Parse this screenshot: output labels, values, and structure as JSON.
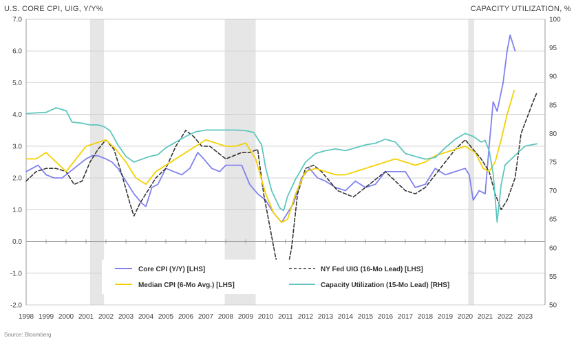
{
  "chart_data": {
    "type": "line",
    "left_axis_title": "U.S. CORE CPI, UIG, Y/Y%",
    "right_axis_title": "CAPACITY UTILIZATION, %",
    "source": "Source: Bloomberg",
    "xlim": [
      1998,
      2024
    ],
    "x_ticks": [
      1998,
      1999,
      2000,
      2001,
      2002,
      2003,
      2004,
      2005,
      2006,
      2007,
      2008,
      2009,
      2010,
      2011,
      2012,
      2013,
      2014,
      2015,
      2016,
      2017,
      2018,
      2019,
      2020,
      2021,
      2022,
      2023
    ],
    "ylim_left": [
      -2.0,
      7.0
    ],
    "y_ticks_left": [
      "-2.0",
      "-1.0",
      "0.0",
      "1.0",
      "2.0",
      "3.0",
      "4.0",
      "5.0",
      "6.0",
      "7.0"
    ],
    "ylim_right": [
      50,
      100
    ],
    "y_ticks_right": [
      "50",
      "55",
      "60",
      "65",
      "70",
      "75",
      "80",
      "85",
      "90",
      "95",
      "100"
    ],
    "grid": true,
    "legend_position": "bottom-center",
    "recessions": [
      [
        2001.2,
        2001.9
      ],
      [
        2007.95,
        2009.5
      ],
      [
        2020.15,
        2020.45
      ]
    ],
    "series": [
      {
        "name": "Core CPI (Y/Y) [LHS]",
        "axis": "left",
        "color": "#8080f0",
        "dash": "none",
        "points": [
          [
            1998.0,
            2.2
          ],
          [
            1998.3,
            2.3
          ],
          [
            1998.6,
            2.4
          ],
          [
            1999.0,
            2.1
          ],
          [
            1999.4,
            2.0
          ],
          [
            1999.8,
            2.0
          ],
          [
            2000.2,
            2.2
          ],
          [
            2000.6,
            2.4
          ],
          [
            2001.0,
            2.6
          ],
          [
            2001.3,
            2.7
          ],
          [
            2001.6,
            2.7
          ],
          [
            2002.0,
            2.6
          ],
          [
            2002.3,
            2.5
          ],
          [
            2002.6,
            2.3
          ],
          [
            2003.0,
            1.9
          ],
          [
            2003.4,
            1.5
          ],
          [
            2003.8,
            1.2
          ],
          [
            2004.0,
            1.1
          ],
          [
            2004.3,
            1.7
          ],
          [
            2004.6,
            1.8
          ],
          [
            2005.0,
            2.3
          ],
          [
            2005.4,
            2.2
          ],
          [
            2005.8,
            2.1
          ],
          [
            2006.2,
            2.3
          ],
          [
            2006.6,
            2.8
          ],
          [
            2006.9,
            2.6
          ],
          [
            2007.3,
            2.3
          ],
          [
            2007.7,
            2.2
          ],
          [
            2008.0,
            2.4
          ],
          [
            2008.4,
            2.4
          ],
          [
            2008.8,
            2.4
          ],
          [
            2009.2,
            1.8
          ],
          [
            2009.6,
            1.5
          ],
          [
            2010.0,
            1.3
          ],
          [
            2010.4,
            0.9
          ],
          [
            2010.8,
            0.6
          ],
          [
            2011.0,
            0.8
          ],
          [
            2011.4,
            1.2
          ],
          [
            2011.8,
            2.0
          ],
          [
            2012.2,
            2.3
          ],
          [
            2012.6,
            2.0
          ],
          [
            2013.0,
            1.9
          ],
          [
            2013.5,
            1.7
          ],
          [
            2014.0,
            1.6
          ],
          [
            2014.5,
            1.9
          ],
          [
            2015.0,
            1.7
          ],
          [
            2015.5,
            1.8
          ],
          [
            2016.0,
            2.2
          ],
          [
            2016.5,
            2.2
          ],
          [
            2017.0,
            2.2
          ],
          [
            2017.5,
            1.7
          ],
          [
            2018.0,
            1.8
          ],
          [
            2018.5,
            2.3
          ],
          [
            2019.0,
            2.1
          ],
          [
            2019.5,
            2.2
          ],
          [
            2020.0,
            2.3
          ],
          [
            2020.2,
            2.1
          ],
          [
            2020.4,
            1.3
          ],
          [
            2020.7,
            1.6
          ],
          [
            2021.0,
            1.5
          ],
          [
            2021.2,
            3.0
          ],
          [
            2021.4,
            4.4
          ],
          [
            2021.6,
            4.1
          ],
          [
            2021.9,
            5.0
          ],
          [
            2022.1,
            6.0
          ],
          [
            2022.25,
            6.5
          ],
          [
            2022.5,
            6.0
          ]
        ]
      },
      {
        "name": "NY Fed UIG (16-Mo Lead) [LHS]",
        "axis": "left",
        "color": "#333333",
        "dash": "dashed",
        "points": [
          [
            1998.0,
            1.9
          ],
          [
            1998.5,
            2.2
          ],
          [
            1999.0,
            2.3
          ],
          [
            1999.5,
            2.3
          ],
          [
            2000.0,
            2.2
          ],
          [
            2000.4,
            1.8
          ],
          [
            2000.8,
            1.9
          ],
          [
            2001.2,
            2.5
          ],
          [
            2001.6,
            2.9
          ],
          [
            2002.0,
            3.2
          ],
          [
            2002.4,
            2.9
          ],
          [
            2002.8,
            2.1
          ],
          [
            2003.2,
            1.2
          ],
          [
            2003.4,
            0.8
          ],
          [
            2003.7,
            1.2
          ],
          [
            2004.0,
            1.5
          ],
          [
            2004.5,
            2.0
          ],
          [
            2005.0,
            2.3
          ],
          [
            2005.5,
            3.0
          ],
          [
            2006.0,
            3.5
          ],
          [
            2006.4,
            3.3
          ],
          [
            2006.8,
            3.0
          ],
          [
            2007.2,
            3.0
          ],
          [
            2007.6,
            2.8
          ],
          [
            2008.0,
            2.6
          ],
          [
            2008.4,
            2.7
          ],
          [
            2008.8,
            2.8
          ],
          [
            2009.2,
            2.8
          ],
          [
            2009.6,
            2.9
          ],
          [
            2009.9,
            1.5
          ],
          [
            2010.2,
            0.5
          ],
          [
            2010.5,
            -0.5
          ],
          [
            2010.8,
            -1.1
          ],
          [
            2011.0,
            -1.2
          ],
          [
            2011.3,
            -0.2
          ],
          [
            2011.6,
            1.5
          ],
          [
            2012.0,
            2.3
          ],
          [
            2012.4,
            2.4
          ],
          [
            2012.8,
            2.2
          ],
          [
            2013.2,
            1.9
          ],
          [
            2013.6,
            1.6
          ],
          [
            2014.0,
            1.5
          ],
          [
            2014.4,
            1.4
          ],
          [
            2014.8,
            1.6
          ],
          [
            2015.2,
            1.8
          ],
          [
            2015.6,
            2.0
          ],
          [
            2016.0,
            2.2
          ],
          [
            2016.5,
            1.9
          ],
          [
            2017.0,
            1.6
          ],
          [
            2017.5,
            1.5
          ],
          [
            2018.0,
            1.7
          ],
          [
            2018.5,
            2.1
          ],
          [
            2019.0,
            2.5
          ],
          [
            2019.5,
            2.9
          ],
          [
            2020.0,
            3.2
          ],
          [
            2020.4,
            2.9
          ],
          [
            2020.8,
            2.6
          ],
          [
            2021.2,
            2.2
          ],
          [
            2021.5,
            1.5
          ],
          [
            2021.8,
            1.0
          ],
          [
            2022.1,
            1.3
          ],
          [
            2022.5,
            2.0
          ],
          [
            2022.8,
            3.4
          ],
          [
            2023.1,
            3.9
          ],
          [
            2023.4,
            4.4
          ],
          [
            2023.6,
            4.7
          ]
        ]
      },
      {
        "name": "Median CPI (6-Mo Avg.) [LHS]",
        "axis": "left",
        "color": "#f5d000",
        "dash": "none",
        "points": [
          [
            1998.0,
            2.6
          ],
          [
            1998.5,
            2.6
          ],
          [
            1999.0,
            2.8
          ],
          [
            1999.5,
            2.5
          ],
          [
            2000.0,
            2.2
          ],
          [
            2000.5,
            2.6
          ],
          [
            2001.0,
            3.0
          ],
          [
            2001.5,
            3.1
          ],
          [
            2002.0,
            3.2
          ],
          [
            2002.5,
            2.9
          ],
          [
            2003.0,
            2.5
          ],
          [
            2003.5,
            2.0
          ],
          [
            2004.0,
            1.8
          ],
          [
            2004.5,
            2.2
          ],
          [
            2005.0,
            2.4
          ],
          [
            2005.5,
            2.6
          ],
          [
            2006.0,
            2.8
          ],
          [
            2006.5,
            3.0
          ],
          [
            2007.0,
            3.2
          ],
          [
            2007.5,
            3.1
          ],
          [
            2008.0,
            3.0
          ],
          [
            2008.5,
            3.0
          ],
          [
            2009.0,
            3.1
          ],
          [
            2009.5,
            2.6
          ],
          [
            2010.0,
            1.5
          ],
          [
            2010.4,
            0.9
          ],
          [
            2010.8,
            0.6
          ],
          [
            2011.1,
            0.7
          ],
          [
            2011.5,
            1.5
          ],
          [
            2012.0,
            2.2
          ],
          [
            2012.5,
            2.3
          ],
          [
            2013.0,
            2.2
          ],
          [
            2013.5,
            2.1
          ],
          [
            2014.0,
            2.1
          ],
          [
            2014.5,
            2.2
          ],
          [
            2015.0,
            2.3
          ],
          [
            2015.5,
            2.4
          ],
          [
            2016.0,
            2.5
          ],
          [
            2016.5,
            2.6
          ],
          [
            2017.0,
            2.5
          ],
          [
            2017.5,
            2.4
          ],
          [
            2018.0,
            2.5
          ],
          [
            2018.5,
            2.7
          ],
          [
            2019.0,
            2.8
          ],
          [
            2019.5,
            2.9
          ],
          [
            2020.0,
            3.0
          ],
          [
            2020.5,
            2.8
          ],
          [
            2020.9,
            2.3
          ],
          [
            2021.2,
            2.2
          ],
          [
            2021.5,
            2.5
          ],
          [
            2021.8,
            3.2
          ],
          [
            2022.1,
            4.0
          ],
          [
            2022.45,
            4.75
          ]
        ]
      },
      {
        "name": "Capacity Utilization (15-Mo Lead) [RHS]",
        "axis": "right",
        "color": "#5ec6bf",
        "dash": "none",
        "points": [
          [
            1998.0,
            83.5
          ],
          [
            1998.5,
            83.6
          ],
          [
            1999.0,
            83.7
          ],
          [
            1999.5,
            84.5
          ],
          [
            2000.0,
            84.0
          ],
          [
            2000.3,
            82.0
          ],
          [
            2000.8,
            81.8
          ],
          [
            2001.2,
            81.5
          ],
          [
            2001.6,
            81.5
          ],
          [
            2001.9,
            81.2
          ],
          [
            2002.2,
            80.5
          ],
          [
            2002.6,
            78.0
          ],
          [
            2003.0,
            76.0
          ],
          [
            2003.4,
            75.0
          ],
          [
            2003.8,
            75.5
          ],
          [
            2004.2,
            76.0
          ],
          [
            2004.6,
            76.3
          ],
          [
            2005.0,
            77.5
          ],
          [
            2005.5,
            78.5
          ],
          [
            2006.0,
            79.5
          ],
          [
            2006.5,
            80.3
          ],
          [
            2007.0,
            80.6
          ],
          [
            2007.5,
            80.6
          ],
          [
            2008.0,
            80.6
          ],
          [
            2008.5,
            80.6
          ],
          [
            2009.0,
            80.5
          ],
          [
            2009.4,
            80.2
          ],
          [
            2009.8,
            78.0
          ],
          [
            2010.0,
            74.0
          ],
          [
            2010.3,
            70.0
          ],
          [
            2010.7,
            67.0
          ],
          [
            2010.9,
            66.5
          ],
          [
            2011.1,
            69.0
          ],
          [
            2011.5,
            72.0
          ],
          [
            2012.0,
            75.0
          ],
          [
            2012.5,
            76.5
          ],
          [
            2013.0,
            77.0
          ],
          [
            2013.5,
            77.3
          ],
          [
            2014.0,
            77.0
          ],
          [
            2014.5,
            77.5
          ],
          [
            2015.0,
            78.0
          ],
          [
            2015.5,
            78.3
          ],
          [
            2016.0,
            79.0
          ],
          [
            2016.5,
            78.5
          ],
          [
            2017.0,
            76.5
          ],
          [
            2017.5,
            76.0
          ],
          [
            2018.0,
            75.5
          ],
          [
            2018.5,
            75.8
          ],
          [
            2019.0,
            77.5
          ],
          [
            2019.5,
            79.0
          ],
          [
            2020.0,
            80.0
          ],
          [
            2020.4,
            79.5
          ],
          [
            2020.8,
            78.5
          ],
          [
            2021.0,
            78.8
          ],
          [
            2021.2,
            77.0
          ],
          [
            2021.4,
            73.0
          ],
          [
            2021.6,
            64.5
          ],
          [
            2021.8,
            71.0
          ],
          [
            2022.0,
            74.5
          ],
          [
            2022.3,
            75.5
          ],
          [
            2022.6,
            76.5
          ],
          [
            2023.0,
            77.8
          ],
          [
            2023.3,
            78.0
          ],
          [
            2023.6,
            78.2
          ]
        ]
      }
    ]
  }
}
